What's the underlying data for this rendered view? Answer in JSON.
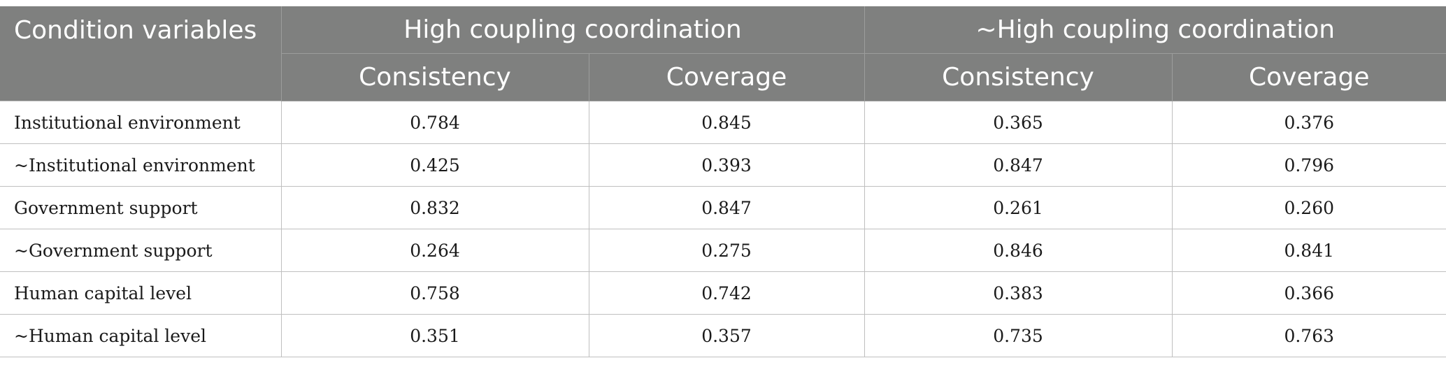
{
  "header": {
    "stub_label": "Condition variables",
    "groups": [
      "High coupling coordination",
      "~High coupling coordination"
    ],
    "sub_columns": [
      "Consistency",
      "Coverage",
      "Consistency",
      "Coverage"
    ]
  },
  "rows": [
    {
      "label": "Institutional environment",
      "values": [
        "0.784",
        "0.845",
        "0.365",
        "0.376"
      ]
    },
    {
      "label": "~Institutional environment",
      "values": [
        "0.425",
        "0.393",
        "0.847",
        "0.796"
      ]
    },
    {
      "label": "Government support",
      "values": [
        "0.832",
        "0.847",
        "0.261",
        "0.260"
      ]
    },
    {
      "label": "~Government support",
      "values": [
        "0.264",
        "0.275",
        "0.846",
        "0.841"
      ]
    },
    {
      "label": "Human capital level",
      "values": [
        "0.758",
        "0.742",
        "0.383",
        "0.366"
      ]
    },
    {
      "label": "~Human capital level",
      "values": [
        "0.351",
        "0.357",
        "0.735",
        "0.763"
      ]
    }
  ],
  "colors": {
    "header_bg": "#7f807f",
    "header_text": "#ffffff",
    "grid": "#bfbfbf"
  }
}
